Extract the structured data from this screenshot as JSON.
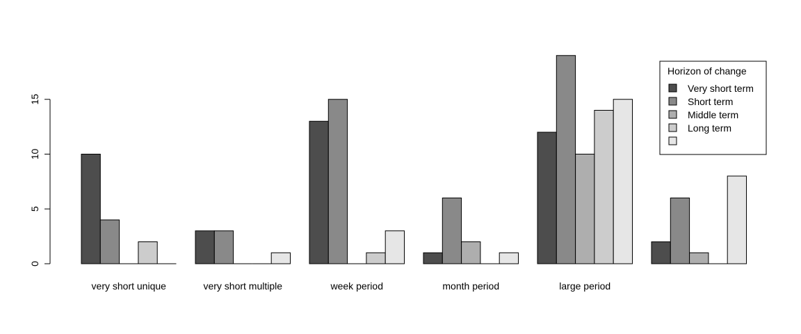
{
  "chart_data": {
    "type": "bar",
    "title": "",
    "xlabel": "",
    "ylabel": "",
    "ylim": [
      0,
      19
    ],
    "yticks": [
      0,
      5,
      10,
      15
    ],
    "grid": false,
    "legend_position": "top-right",
    "legend_title": "Horizon of change",
    "categories": [
      "very short unique",
      "very short multiple",
      "week period",
      "month period",
      "large period",
      ""
    ],
    "series": [
      {
        "name": "Very short term",
        "color": "#4d4d4d",
        "values": [
          10,
          3,
          13,
          1,
          12,
          2
        ]
      },
      {
        "name": "Short term",
        "color": "#898989",
        "values": [
          4,
          3,
          15,
          6,
          19,
          6
        ]
      },
      {
        "name": "Middle term",
        "color": "#aeaeae",
        "values": [
          0,
          0,
          0,
          2,
          10,
          1
        ]
      },
      {
        "name": "Long term",
        "color": "#cccccc",
        "values": [
          2,
          0,
          1,
          0,
          14,
          0
        ]
      },
      {
        "name": "",
        "color": "#e6e6e6",
        "values": [
          0,
          1,
          3,
          1,
          15,
          8
        ]
      }
    ]
  }
}
